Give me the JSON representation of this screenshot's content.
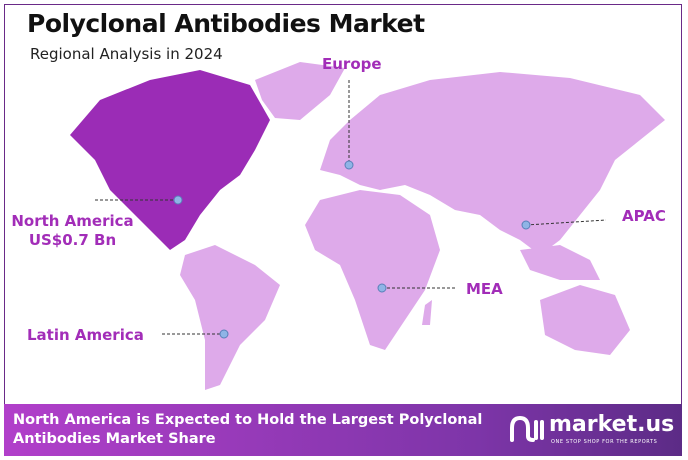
{
  "header": {
    "title": "Polyclonal Antibodies Market",
    "subtitle": "Regional Analysis in 2024"
  },
  "colors": {
    "highlight_region": "#9b2cb6",
    "other_regions": "#deaaea",
    "label": "#a22db8",
    "marker": "#8fb4e6"
  },
  "regions": [
    {
      "name": "Europe",
      "highlighted": false
    },
    {
      "name": "North America",
      "value": "US$0.7 Bn",
      "highlighted": true
    },
    {
      "name": "APAC",
      "highlighted": false
    },
    {
      "name": "MEA",
      "highlighted": false
    },
    {
      "name": "Latin America",
      "highlighted": false
    }
  ],
  "footer": {
    "text": "North America is Expected to Hold the Largest Polyclonal Antibodies Market Share"
  },
  "logo": {
    "name": "market.us",
    "tagline": "ONE STOP SHOP FOR THE REPORTS"
  }
}
